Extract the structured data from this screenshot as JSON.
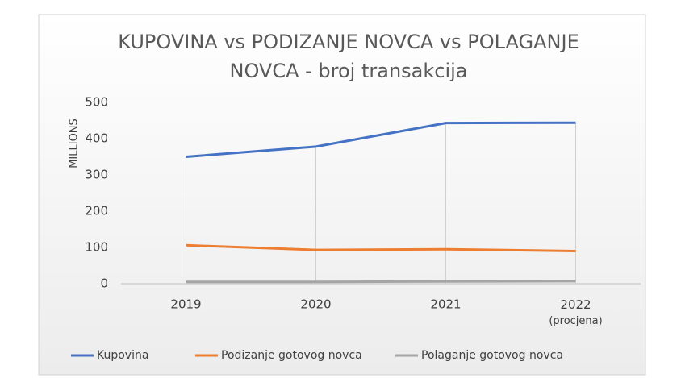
{
  "chart_data": {
    "type": "line",
    "title": "KUPOVINA vs PODIZANJE NOVCA vs POLAGANJE NOVCA - broj transakcija",
    "y_label": "MILLIONS",
    "categories": [
      "2019",
      "2020",
      "2021",
      "2022 (procjena)"
    ],
    "series": [
      {
        "name": "Kupovina",
        "color": "#4472c4",
        "values": [
          350,
          378,
          443,
          444
        ]
      },
      {
        "name": "Podizanje gotovog novca",
        "color": "#ed7d31",
        "values": [
          106,
          93,
          95,
          90
        ]
      },
      {
        "name": "Polaganje gotovog novca",
        "color": "#a5a5a5",
        "values": [
          5,
          5,
          6,
          7
        ]
      }
    ],
    "ylim": [
      0,
      500
    ],
    "yticks": [
      0,
      100,
      200,
      300,
      400,
      500
    ],
    "drop_lines": true,
    "legend": "bottom"
  }
}
